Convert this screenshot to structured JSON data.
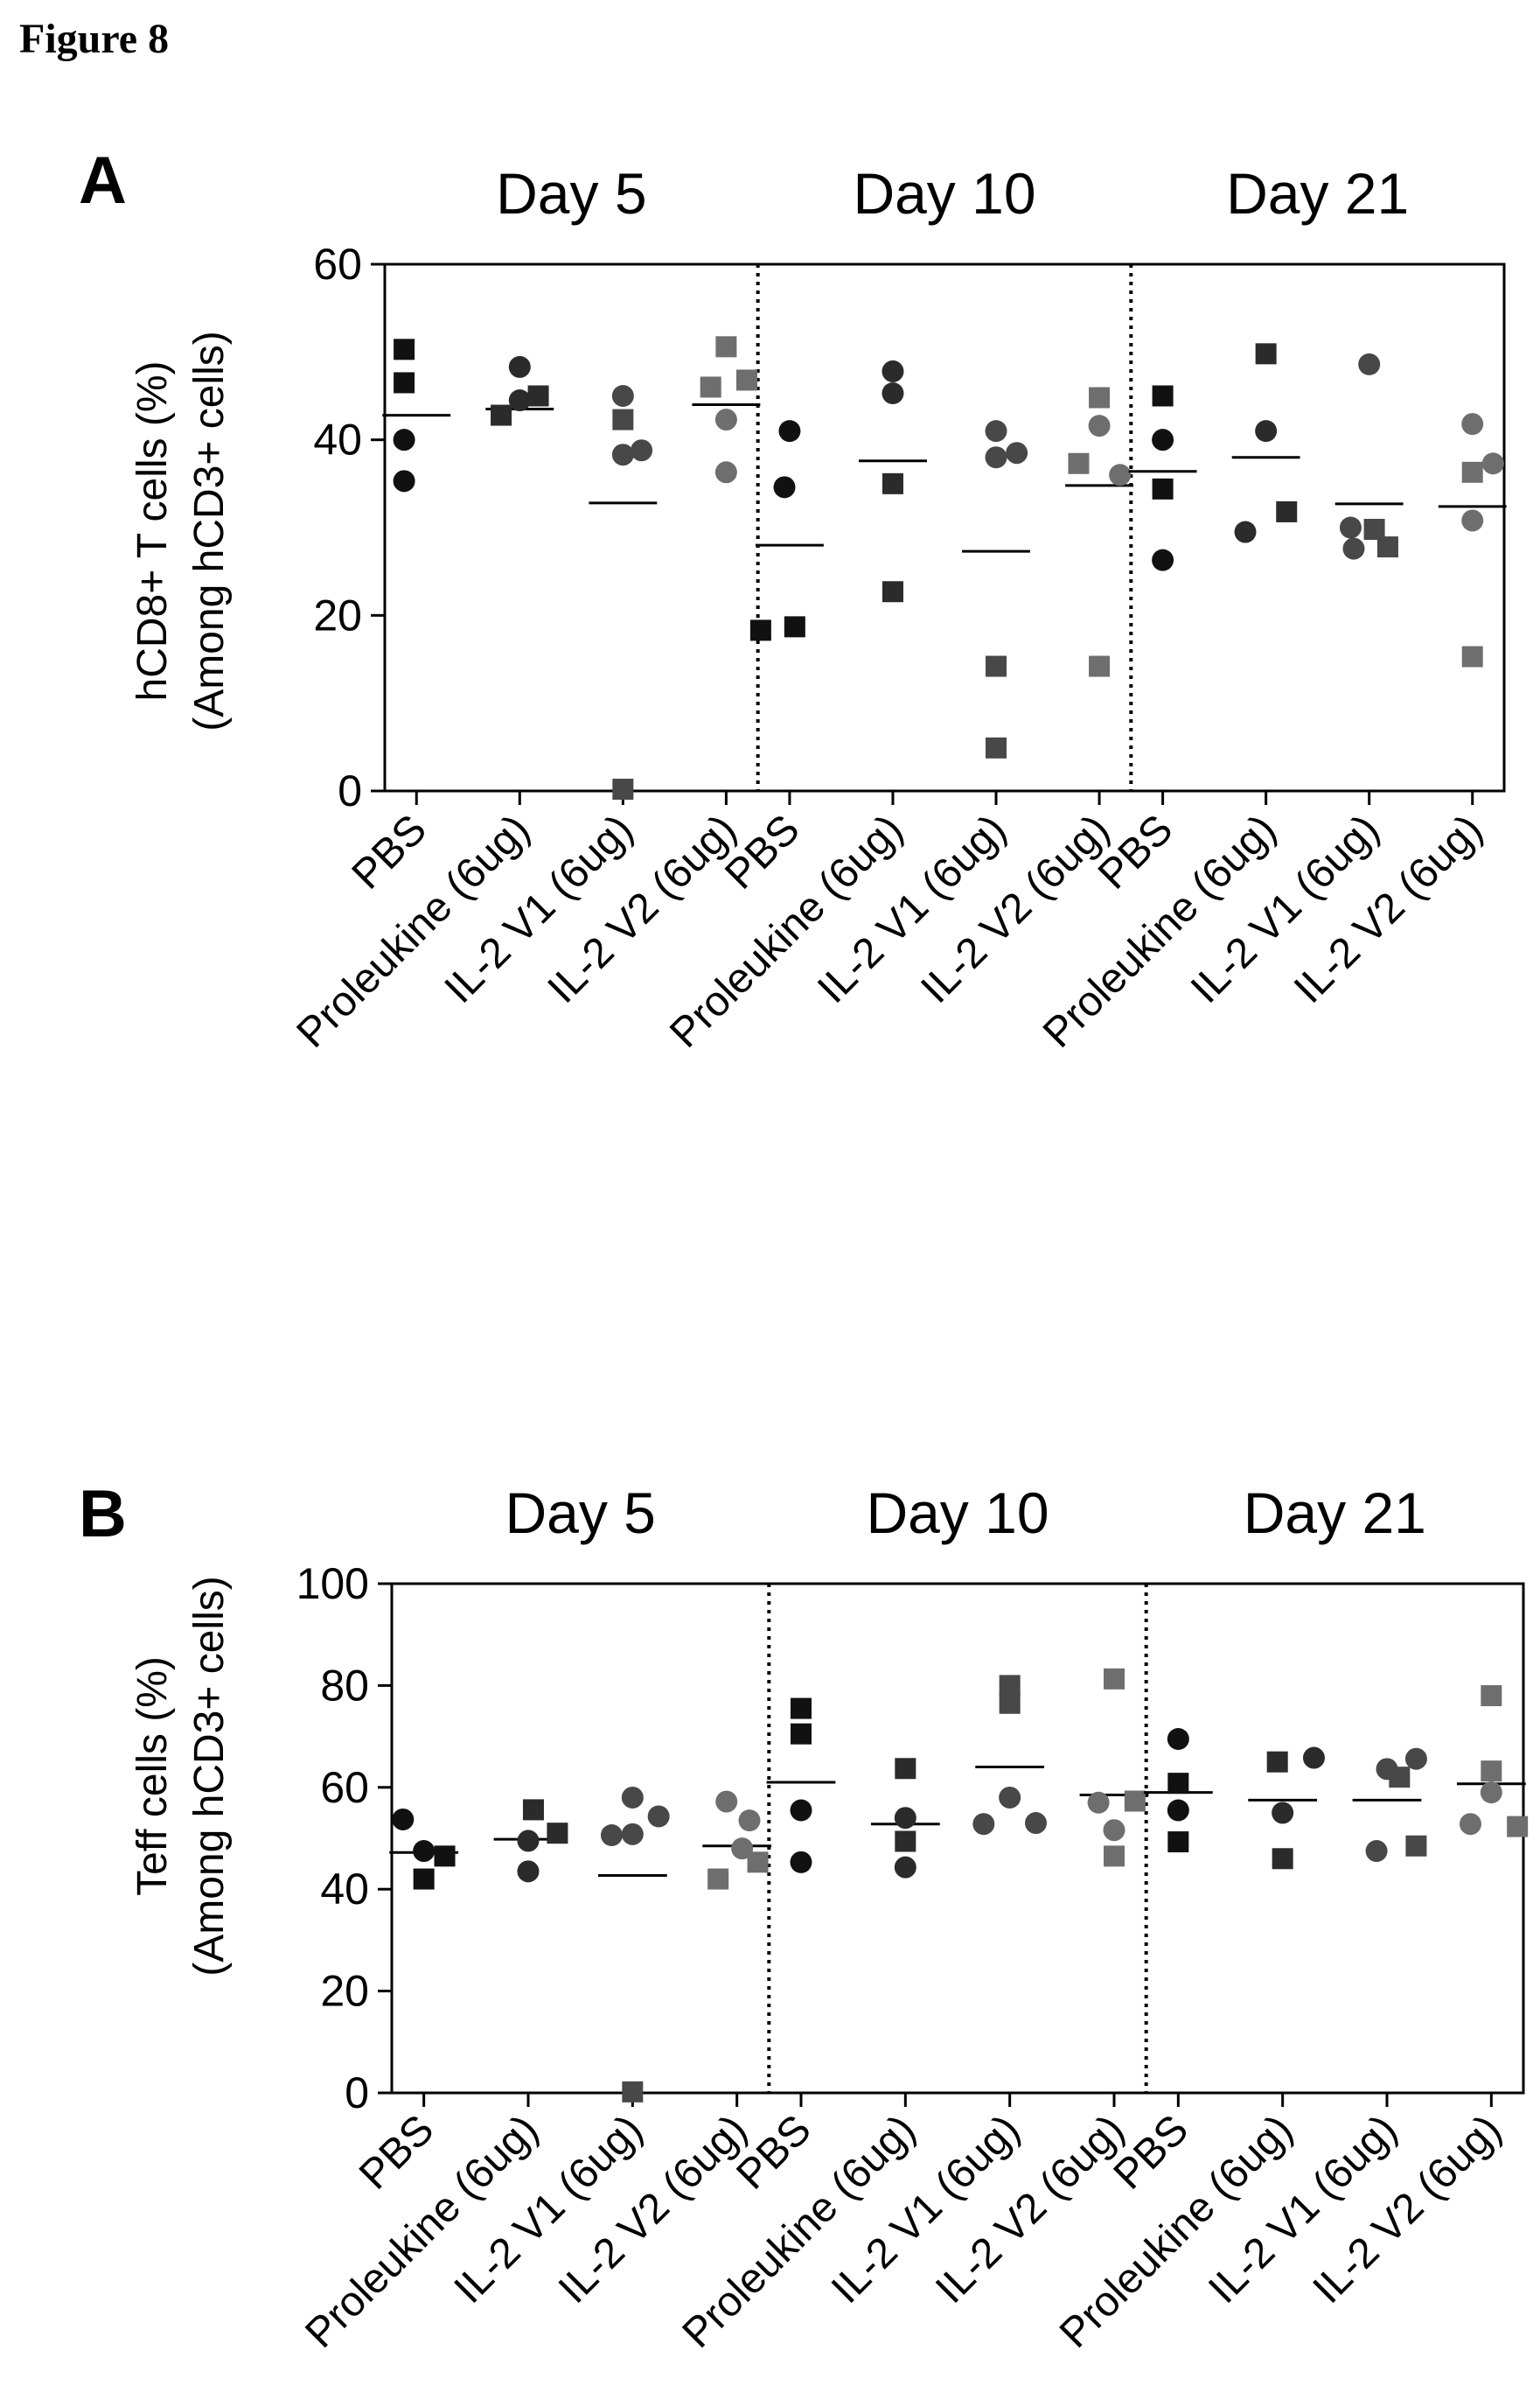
{
  "figure": {
    "title": "Figure 8"
  },
  "chart_data": [
    {
      "type": "scatter",
      "panel": "A",
      "ylabel": [
        "hCD8+ T cells (%)",
        "(Among hCD3+ cells)"
      ],
      "ylim": [
        0,
        60
      ],
      "yticks": [
        0,
        20,
        40,
        60
      ],
      "groups": [
        "Day 5",
        "Day 10",
        "Day 21"
      ],
      "categories": [
        "PBS",
        "Proleukine (6ug)",
        "IL-2 V1 (6ug)",
        "IL-2 V2 (6ug)"
      ],
      "grid": false,
      "colors": {
        "PBS": "#111111",
        "Proleukine (6ug)": "#2b2b2b",
        "IL-2 V1 (6ug)": "#484848",
        "IL-2 V2 (6ug)": "#6e6e6e"
      },
      "series": [
        {
          "group": "Day 5",
          "category": "PBS",
          "mean": 42.8,
          "points": [
            {
              "y": 50.3,
              "dx": -0.12,
              "shape": "square"
            },
            {
              "y": 46.5,
              "dx": -0.12,
              "shape": "square"
            },
            {
              "y": 40.0,
              "dx": -0.12,
              "shape": "circle"
            },
            {
              "y": 35.3,
              "dx": -0.12,
              "shape": "circle"
            }
          ]
        },
        {
          "group": "Day 5",
          "category": "Proleukine (6ug)",
          "mean": 43.5,
          "points": [
            {
              "y": 48.3,
              "dx": 0.0,
              "shape": "circle"
            },
            {
              "y": 44.5,
              "dx": 0.0,
              "shape": "circle"
            },
            {
              "y": 45.0,
              "dx": 0.18,
              "shape": "square"
            },
            {
              "y": 42.8,
              "dx": -0.18,
              "shape": "square"
            }
          ]
        },
        {
          "group": "Day 5",
          "category": "IL-2 V1 (6ug)",
          "mean": 32.8,
          "points": [
            {
              "y": 45.0,
              "dx": 0.0,
              "shape": "circle"
            },
            {
              "y": 42.3,
              "dx": 0.0,
              "shape": "square"
            },
            {
              "y": 38.3,
              "dx": 0.0,
              "shape": "circle"
            },
            {
              "y": 38.8,
              "dx": 0.18,
              "shape": "circle"
            },
            {
              "y": 0.2,
              "dx": 0.0,
              "shape": "square"
            }
          ]
        },
        {
          "group": "Day 5",
          "category": "IL-2 V2 (6ug)",
          "mean": 44.0,
          "points": [
            {
              "y": 50.6,
              "dx": 0.0,
              "shape": "square"
            },
            {
              "y": 46.8,
              "dx": 0.2,
              "shape": "square"
            },
            {
              "y": 46.0,
              "dx": -0.15,
              "shape": "square"
            },
            {
              "y": 42.3,
              "dx": 0.0,
              "shape": "circle"
            },
            {
              "y": 36.3,
              "dx": 0.0,
              "shape": "circle"
            }
          ]
        },
        {
          "group": "Day 10",
          "category": "PBS",
          "mean": 28.0,
          "points": [
            {
              "y": 41.0,
              "dx": 0.0,
              "shape": "circle"
            },
            {
              "y": 34.6,
              "dx": -0.05,
              "shape": "circle"
            },
            {
              "y": 18.3,
              "dx": -0.28,
              "shape": "square"
            },
            {
              "y": 18.7,
              "dx": 0.05,
              "shape": "square"
            }
          ]
        },
        {
          "group": "Day 10",
          "category": "Proleukine (6ug)",
          "mean": 37.6,
          "points": [
            {
              "y": 47.8,
              "dx": 0.0,
              "shape": "circle"
            },
            {
              "y": 45.3,
              "dx": 0.0,
              "shape": "circle"
            },
            {
              "y": 35.0,
              "dx": 0.0,
              "shape": "square"
            },
            {
              "y": 22.7,
              "dx": 0.0,
              "shape": "square"
            }
          ]
        },
        {
          "group": "Day 10",
          "category": "IL-2 V1 (6ug)",
          "mean": 27.3,
          "points": [
            {
              "y": 41.0,
              "dx": 0.0,
              "shape": "circle"
            },
            {
              "y": 38.0,
              "dx": 0.0,
              "shape": "circle"
            },
            {
              "y": 38.5,
              "dx": 0.2,
              "shape": "circle"
            },
            {
              "y": 14.2,
              "dx": 0.0,
              "shape": "square"
            },
            {
              "y": 4.9,
              "dx": 0.0,
              "shape": "square"
            }
          ]
        },
        {
          "group": "Day 10",
          "category": "IL-2 V2 (6ug)",
          "mean": 34.8,
          "points": [
            {
              "y": 44.8,
              "dx": 0.0,
              "shape": "square"
            },
            {
              "y": 41.6,
              "dx": 0.0,
              "shape": "circle"
            },
            {
              "y": 37.3,
              "dx": -0.2,
              "shape": "square"
            },
            {
              "y": 36.0,
              "dx": 0.2,
              "shape": "circle"
            },
            {
              "y": 14.2,
              "dx": 0.0,
              "shape": "square"
            }
          ]
        },
        {
          "group": "Day 21",
          "category": "PBS",
          "mean": 36.4,
          "points": [
            {
              "y": 45.0,
              "dx": 0.0,
              "shape": "square"
            },
            {
              "y": 40.0,
              "dx": 0.0,
              "shape": "circle"
            },
            {
              "y": 34.4,
              "dx": 0.0,
              "shape": "square"
            },
            {
              "y": 26.3,
              "dx": 0.0,
              "shape": "circle"
            }
          ]
        },
        {
          "group": "Day 21",
          "category": "Proleukine (6ug)",
          "mean": 38.0,
          "points": [
            {
              "y": 49.8,
              "dx": 0.0,
              "shape": "square"
            },
            {
              "y": 41.0,
              "dx": 0.0,
              "shape": "circle"
            },
            {
              "y": 31.8,
              "dx": 0.2,
              "shape": "square"
            },
            {
              "y": 29.5,
              "dx": -0.2,
              "shape": "circle"
            }
          ]
        },
        {
          "group": "Day 21",
          "category": "IL-2 V1 (6ug)",
          "mean": 32.7,
          "points": [
            {
              "y": 48.6,
              "dx": 0.0,
              "shape": "circle"
            },
            {
              "y": 30.0,
              "dx": -0.18,
              "shape": "circle"
            },
            {
              "y": 29.8,
              "dx": 0.05,
              "shape": "square"
            },
            {
              "y": 27.6,
              "dx": -0.15,
              "shape": "circle"
            },
            {
              "y": 27.8,
              "dx": 0.18,
              "shape": "square"
            }
          ]
        },
        {
          "group": "Day 21",
          "category": "IL-2 V2 (6ug)",
          "mean": 32.4,
          "points": [
            {
              "y": 41.8,
              "dx": 0.0,
              "shape": "circle"
            },
            {
              "y": 37.3,
              "dx": 0.2,
              "shape": "circle"
            },
            {
              "y": 36.3,
              "dx": 0.0,
              "shape": "square"
            },
            {
              "y": 30.8,
              "dx": 0.0,
              "shape": "circle"
            },
            {
              "y": 15.3,
              "dx": 0.0,
              "shape": "square"
            }
          ]
        }
      ]
    },
    {
      "type": "scatter",
      "panel": "B",
      "ylabel": [
        "Teff cells (%)",
        "(Among hCD3+ cells)"
      ],
      "ylim": [
        0,
        100
      ],
      "yticks": [
        0,
        20,
        40,
        60,
        80,
        100
      ],
      "groups": [
        "Day 5",
        "Day 10",
        "Day 21"
      ],
      "categories": [
        "PBS",
        "Proleukine (6ug)",
        "IL-2 V1 (6ug)",
        "IL-2 V2 (6ug)"
      ],
      "grid": false,
      "colors": {
        "PBS": "#111111",
        "Proleukine (6ug)": "#2b2b2b",
        "IL-2 V1 (6ug)": "#484848",
        "IL-2 V2 (6ug)": "#6e6e6e"
      },
      "series": [
        {
          "group": "Day 5",
          "category": "PBS",
          "mean": 47.2,
          "points": [
            {
              "y": 53.7,
              "dx": -0.2,
              "shape": "circle"
            },
            {
              "y": 47.5,
              "dx": 0.0,
              "shape": "circle"
            },
            {
              "y": 46.5,
              "dx": 0.2,
              "shape": "square"
            },
            {
              "y": 42.0,
              "dx": 0.0,
              "shape": "square"
            }
          ]
        },
        {
          "group": "Day 5",
          "category": "Proleukine (6ug)",
          "mean": 49.8,
          "points": [
            {
              "y": 55.6,
              "dx": 0.05,
              "shape": "square"
            },
            {
              "y": 51.0,
              "dx": 0.28,
              "shape": "square"
            },
            {
              "y": 49.5,
              "dx": 0.0,
              "shape": "circle"
            },
            {
              "y": 43.5,
              "dx": 0.0,
              "shape": "circle"
            }
          ]
        },
        {
          "group": "Day 5",
          "category": "IL-2 V1 (6ug)",
          "mean": 42.7,
          "points": [
            {
              "y": 58.0,
              "dx": 0.0,
              "shape": "circle"
            },
            {
              "y": 54.3,
              "dx": 0.25,
              "shape": "circle"
            },
            {
              "y": 50.6,
              "dx": -0.2,
              "shape": "circle"
            },
            {
              "y": 50.8,
              "dx": 0.0,
              "shape": "circle"
            },
            {
              "y": 0.2,
              "dx": 0.0,
              "shape": "square"
            }
          ]
        },
        {
          "group": "Day 5",
          "category": "IL-2 V2 (6ug)",
          "mean": 48.5,
          "points": [
            {
              "y": 57.2,
              "dx": -0.1,
              "shape": "circle"
            },
            {
              "y": 53.5,
              "dx": 0.12,
              "shape": "circle"
            },
            {
              "y": 48.0,
              "dx": 0.05,
              "shape": "circle"
            },
            {
              "y": 45.3,
              "dx": 0.2,
              "shape": "square"
            },
            {
              "y": 42.0,
              "dx": -0.18,
              "shape": "square"
            }
          ]
        },
        {
          "group": "Day 10",
          "category": "PBS",
          "mean": 61.0,
          "points": [
            {
              "y": 75.5,
              "dx": 0.0,
              "shape": "square"
            },
            {
              "y": 70.5,
              "dx": 0.0,
              "shape": "square"
            },
            {
              "y": 55.5,
              "dx": 0.0,
              "shape": "circle"
            },
            {
              "y": 45.3,
              "dx": 0.0,
              "shape": "circle"
            }
          ]
        },
        {
          "group": "Day 10",
          "category": "Proleukine (6ug)",
          "mean": 52.8,
          "points": [
            {
              "y": 63.7,
              "dx": 0.0,
              "shape": "square"
            },
            {
              "y": 54.0,
              "dx": 0.0,
              "shape": "circle"
            },
            {
              "y": 49.4,
              "dx": 0.0,
              "shape": "square"
            },
            {
              "y": 44.3,
              "dx": 0.0,
              "shape": "circle"
            }
          ]
        },
        {
          "group": "Day 10",
          "category": "IL-2 V1 (6ug)",
          "mean": 64.0,
          "points": [
            {
              "y": 80.0,
              "dx": 0.0,
              "shape": "square"
            },
            {
              "y": 76.5,
              "dx": 0.0,
              "shape": "square"
            },
            {
              "y": 58.0,
              "dx": 0.0,
              "shape": "circle"
            },
            {
              "y": 52.8,
              "dx": -0.25,
              "shape": "circle"
            },
            {
              "y": 53.0,
              "dx": 0.25,
              "shape": "circle"
            }
          ]
        },
        {
          "group": "Day 10",
          "category": "IL-2 V2 (6ug)",
          "mean": 58.5,
          "points": [
            {
              "y": 81.3,
              "dx": 0.0,
              "shape": "square"
            },
            {
              "y": 57.3,
              "dx": 0.2,
              "shape": "square"
            },
            {
              "y": 57.0,
              "dx": -0.15,
              "shape": "circle"
            },
            {
              "y": 51.6,
              "dx": 0.0,
              "shape": "circle"
            },
            {
              "y": 46.5,
              "dx": 0.0,
              "shape": "square"
            }
          ]
        },
        {
          "group": "Day 21",
          "category": "PBS",
          "mean": 59.0,
          "points": [
            {
              "y": 69.5,
              "dx": 0.0,
              "shape": "circle"
            },
            {
              "y": 60.8,
              "dx": 0.0,
              "shape": "square"
            },
            {
              "y": 55.5,
              "dx": 0.0,
              "shape": "circle"
            },
            {
              "y": 49.3,
              "dx": 0.0,
              "shape": "square"
            }
          ]
        },
        {
          "group": "Day 21",
          "category": "Proleukine (6ug)",
          "mean": 57.5,
          "points": [
            {
              "y": 65.0,
              "dx": -0.05,
              "shape": "square"
            },
            {
              "y": 65.8,
              "dx": 0.3,
              "shape": "circle"
            },
            {
              "y": 55.0,
              "dx": 0.0,
              "shape": "circle"
            },
            {
              "y": 46.0,
              "dx": 0.0,
              "shape": "square"
            }
          ]
        },
        {
          "group": "Day 21",
          "category": "IL-2 V1 (6ug)",
          "mean": 57.5,
          "points": [
            {
              "y": 65.6,
              "dx": 0.28,
              "shape": "circle"
            },
            {
              "y": 63.6,
              "dx": 0.0,
              "shape": "circle"
            },
            {
              "y": 62.0,
              "dx": 0.12,
              "shape": "square"
            },
            {
              "y": 48.5,
              "dx": 0.28,
              "shape": "square"
            },
            {
              "y": 47.5,
              "dx": -0.1,
              "shape": "circle"
            }
          ]
        },
        {
          "group": "Day 21",
          "category": "IL-2 V2 (6ug)",
          "mean": 60.7,
          "points": [
            {
              "y": 78.0,
              "dx": 0.0,
              "shape": "square"
            },
            {
              "y": 63.2,
              "dx": 0.0,
              "shape": "square"
            },
            {
              "y": 59.0,
              "dx": 0.0,
              "shape": "circle"
            },
            {
              "y": 52.8,
              "dx": -0.2,
              "shape": "circle"
            },
            {
              "y": 52.3,
              "dx": 0.25,
              "shape": "square"
            }
          ]
        }
      ]
    }
  ]
}
